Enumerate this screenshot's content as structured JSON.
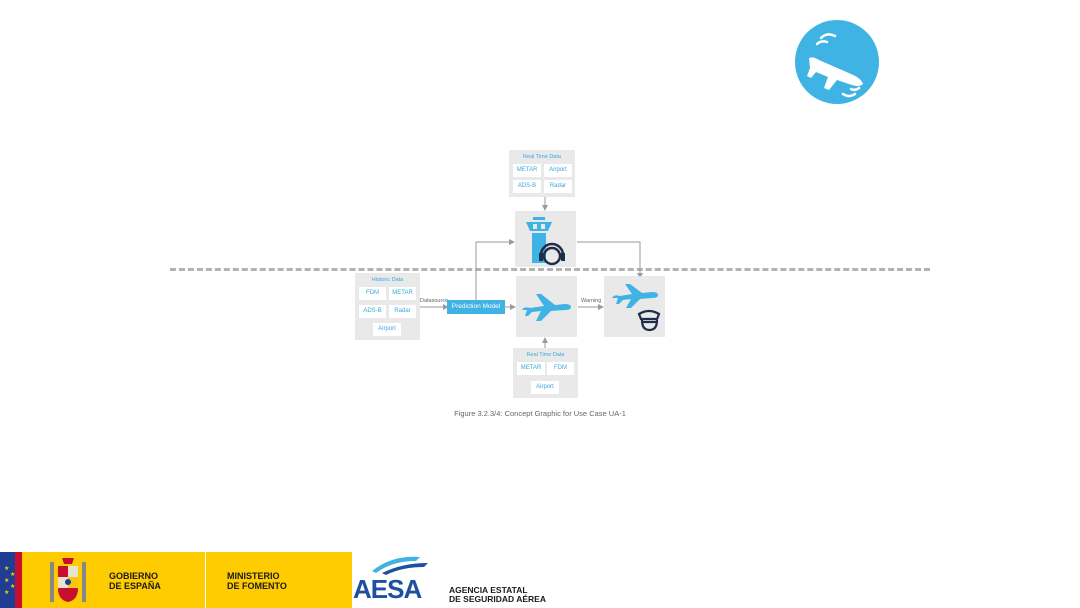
{
  "badge": {
    "icon": "airplane-landing-icon",
    "color": "#3fb3e3"
  },
  "diagram": {
    "realtime_top": {
      "title": "Real Time Data",
      "cells": [
        "METAR",
        "Airport",
        "ADS-B",
        "Radar"
      ]
    },
    "historic": {
      "title": "Historic Data",
      "cells": [
        "FDM",
        "METAR",
        "ADS-B",
        "Radar",
        "Airport"
      ],
      "arrow_label": "Datasource"
    },
    "prediction_model": "Prediction Model",
    "warning_label": "Warning",
    "realtime_bottom": {
      "title": "Real Time Data",
      "cells": [
        "METAR",
        "FDM",
        "Airport"
      ]
    },
    "icons": {
      "tower": "control-tower-headset-icon",
      "aircraft": "aircraft-icon",
      "pilot": "aircraft-pilot-icon"
    }
  },
  "caption": "Figure 3.2.3/4: Concept Graphic for Use Case UA-1",
  "footer": {
    "gov_line1": "GOBIERNO",
    "gov_line2": "DE ESPAÑA",
    "min_line1": "MINISTERIO",
    "min_line2": "DE FOMENTO",
    "aesa": "AESA",
    "agency_line1": "AGENCIA ESTATAL",
    "agency_line2": "DE SEGURIDAD AÉREA"
  },
  "colors": {
    "accent": "#3fb3e3",
    "box": "#e9e9ea",
    "gov_yellow": "#fecc00",
    "aesa_blue": "#1e4fa0"
  }
}
